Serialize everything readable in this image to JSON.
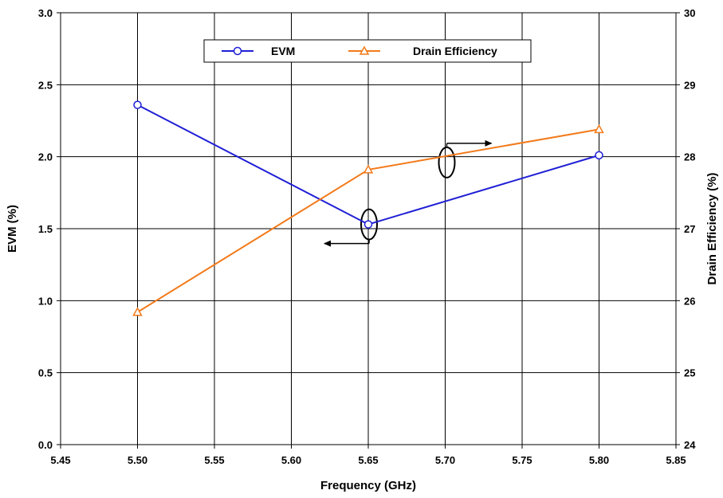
{
  "chart_data": {
    "type": "line",
    "x": [
      5.5,
      5.65,
      5.8
    ],
    "xlabel": "Frequency (GHz)",
    "ylabel": "EVM (%)",
    "y2label": "Drain Efficiency (%)",
    "xlim": [
      5.45,
      5.85
    ],
    "ylim": [
      0,
      3
    ],
    "y2lim": [
      24,
      30
    ],
    "x_ticks": [
      "5.45",
      "5.50",
      "5.55",
      "5.60",
      "5.65",
      "5.70",
      "5.75",
      "5.80",
      "5.85"
    ],
    "y_ticks": [
      "0.0",
      "0.5",
      "1.0",
      "1.5",
      "2.0",
      "2.5",
      "3.0"
    ],
    "y2_ticks": [
      "24",
      "25",
      "26",
      "27",
      "28",
      "29",
      "30"
    ],
    "grid": true,
    "legend_position": "top-center",
    "series": [
      {
        "name": "EVM",
        "axis": "left",
        "values": [
          2.36,
          1.53,
          2.01
        ],
        "color": "#1f1fd6",
        "marker": "circle"
      },
      {
        "name": "Drain Efficiency",
        "axis": "right",
        "values": [
          25.84,
          27.82,
          28.38
        ],
        "color": "#f27a1a",
        "marker": "triangle"
      }
    ]
  }
}
